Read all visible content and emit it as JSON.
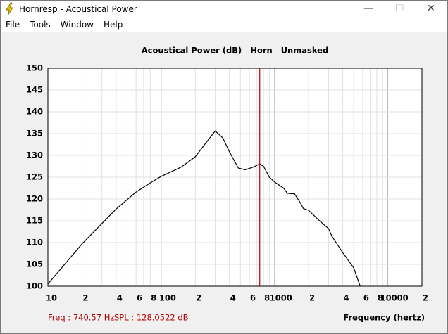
{
  "window": {
    "title": "Hornresp - Acoustical Power",
    "menu": [
      "File",
      "Tools",
      "Window",
      "Help"
    ]
  },
  "chart_data": {
    "type": "line",
    "title": "Acoustical Power (dB)   Horn   Unmasked",
    "x_label": "Frequency (hertz)",
    "x_scale": "log",
    "grid": true,
    "xlim": [
      10,
      20000
    ],
    "xticks": [
      10,
      {
        "value": 20,
        "label": "2"
      },
      {
        "value": 40,
        "label": "4"
      },
      {
        "value": 60,
        "label": "6"
      },
      {
        "value": 80,
        "label": "8"
      },
      100,
      {
        "value": 200,
        "label": "2"
      },
      {
        "value": 400,
        "label": "4"
      },
      {
        "value": 600,
        "label": "6"
      },
      {
        "value": 800,
        "label": "8"
      },
      1000,
      {
        "value": 2000,
        "label": "2"
      },
      {
        "value": 4000,
        "label": "4"
      },
      {
        "value": 6000,
        "label": "6"
      },
      {
        "value": 8000,
        "label": "8"
      },
      10000,
      {
        "value": 20000,
        "label": "2"
      }
    ],
    "xminorticks": [
      30,
      50,
      70,
      90,
      300,
      500,
      700,
      900,
      3000,
      5000,
      7000,
      9000
    ],
    "ylim": [
      100,
      150
    ],
    "yticks": [
      100,
      105,
      110,
      115,
      120,
      125,
      130,
      135,
      140,
      145,
      150
    ],
    "series": [
      {
        "color": "#000000",
        "x": [
          10,
          20,
          40,
          60,
          80,
          100,
          150,
          200,
          250,
          300,
          350,
          400,
          480,
          550,
          650,
          740,
          800,
          900,
          1000,
          1200,
          1300,
          1500,
          1700,
          1800,
          2000,
          2500,
          3000,
          3200,
          4000,
          5000,
          5700
        ],
        "values": [
          100.5,
          109.7,
          117.7,
          121.6,
          123.7,
          125.2,
          127.3,
          129.7,
          133,
          135.6,
          134,
          130.8,
          127.1,
          126.7,
          127.3,
          128.05,
          127.5,
          125,
          123.9,
          122.5,
          121.3,
          121.2,
          119,
          117.8,
          117.4,
          115,
          113.2,
          111.5,
          107.7,
          104.2,
          100
        ]
      }
    ],
    "cursor": {
      "freq": 740.57,
      "color": "#b00000",
      "freq_label": "Freq : 740.57 Hz",
      "spl_label": "SPL : 128.0522 dB"
    }
  }
}
